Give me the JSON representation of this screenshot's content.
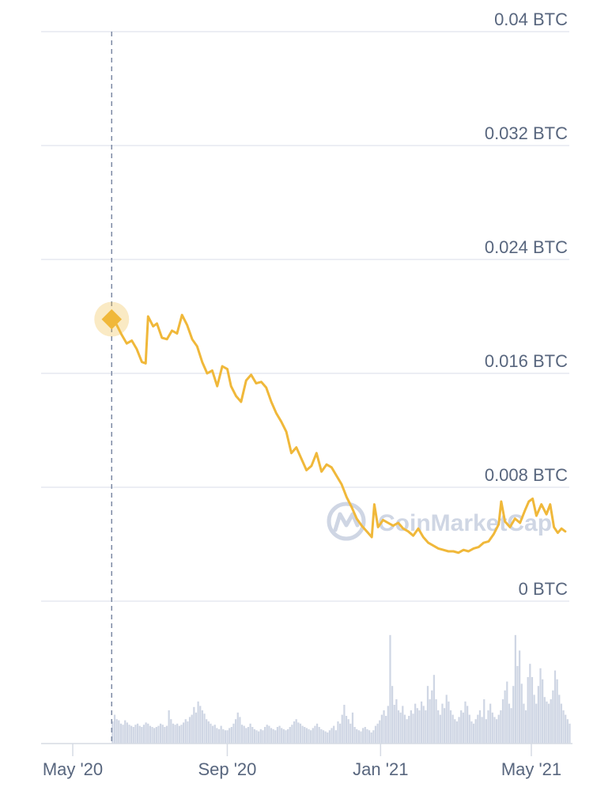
{
  "chart_data": {
    "type": "line",
    "watermark": "CoinMarketCap",
    "colors": {
      "line": "#f0b83a",
      "volume": "#cfd6e4",
      "grid": "#e6e9f0",
      "cursor": "#7d8aa5",
      "text": "#58667e"
    },
    "y_axis": {
      "unit": "BTC",
      "range": [
        0,
        0.04
      ],
      "ticks": [
        {
          "value": 0.04,
          "label": "0.04 BTC"
        },
        {
          "value": 0.032,
          "label": "0.032 BTC"
        },
        {
          "value": 0.024,
          "label": "0.024 BTC"
        },
        {
          "value": 0.016,
          "label": "0.016 BTC"
        },
        {
          "value": 0.008,
          "label": "0.008 BTC"
        },
        {
          "value": 0,
          "label": "0 BTC"
        }
      ]
    },
    "x_axis": {
      "range": [
        "2020-04-01",
        "2021-06-01"
      ],
      "ticks": [
        {
          "date": "2020-05-01",
          "label": "May '20"
        },
        {
          "date": "2020-09-01",
          "label": "Sep '20"
        },
        {
          "date": "2021-01-01",
          "label": "Jan '21"
        },
        {
          "date": "2021-05-01",
          "label": "May '21"
        }
      ]
    },
    "highlight": {
      "date": "2020-06-01",
      "value": 0.0198
    },
    "series": [
      {
        "type": "line",
        "points": [
          [
            "2020-06-01",
            0.0198
          ],
          [
            "2020-06-05",
            0.0194
          ],
          [
            "2020-06-09",
            0.0187
          ],
          [
            "2020-06-13",
            0.0181
          ],
          [
            "2020-06-17",
            0.0183
          ],
          [
            "2020-06-21",
            0.0177
          ],
          [
            "2020-06-25",
            0.0168
          ],
          [
            "2020-06-28",
            0.0167
          ],
          [
            "2020-06-30",
            0.02
          ],
          [
            "2020-07-04",
            0.0193
          ],
          [
            "2020-07-07",
            0.0195
          ],
          [
            "2020-07-11",
            0.0185
          ],
          [
            "2020-07-15",
            0.0184
          ],
          [
            "2020-07-19",
            0.019
          ],
          [
            "2020-07-23",
            0.0188
          ],
          [
            "2020-07-27",
            0.0201
          ],
          [
            "2020-07-31",
            0.0194
          ],
          [
            "2020-08-04",
            0.0184
          ],
          [
            "2020-08-08",
            0.0179
          ],
          [
            "2020-08-12",
            0.0168
          ],
          [
            "2020-08-16",
            0.016
          ],
          [
            "2020-08-20",
            0.0162
          ],
          [
            "2020-08-24",
            0.0151
          ],
          [
            "2020-08-28",
            0.0165
          ],
          [
            "2020-09-01",
            0.0163
          ],
          [
            "2020-09-04",
            0.0151
          ],
          [
            "2020-09-08",
            0.0144
          ],
          [
            "2020-09-12",
            0.014
          ],
          [
            "2020-09-16",
            0.0155
          ],
          [
            "2020-09-20",
            0.0159
          ],
          [
            "2020-09-24",
            0.0153
          ],
          [
            "2020-09-28",
            0.0154
          ],
          [
            "2020-10-02",
            0.015
          ],
          [
            "2020-10-06",
            0.014
          ],
          [
            "2020-10-10",
            0.0132
          ],
          [
            "2020-10-14",
            0.0126
          ],
          [
            "2020-10-18",
            0.0119
          ],
          [
            "2020-10-22",
            0.0104
          ],
          [
            "2020-10-26",
            0.0108
          ],
          [
            "2020-10-30",
            0.01
          ],
          [
            "2020-11-03",
            0.0092
          ],
          [
            "2020-11-07",
            0.0095
          ],
          [
            "2020-11-11",
            0.0104
          ],
          [
            "2020-11-15",
            0.0091
          ],
          [
            "2020-11-19",
            0.0096
          ],
          [
            "2020-11-23",
            0.0094
          ],
          [
            "2020-11-27",
            0.0088
          ],
          [
            "2020-12-01",
            0.0082
          ],
          [
            "2020-12-05",
            0.0073
          ],
          [
            "2020-12-09",
            0.0066
          ],
          [
            "2020-12-13",
            0.0058
          ],
          [
            "2020-12-17",
            0.0053
          ],
          [
            "2020-12-21",
            0.0049
          ],
          [
            "2020-12-25",
            0.0045
          ],
          [
            "2020-12-27",
            0.0068
          ],
          [
            "2020-12-30",
            0.0052
          ],
          [
            "2021-01-03",
            0.0057
          ],
          [
            "2021-01-07",
            0.0055
          ],
          [
            "2021-01-11",
            0.0053
          ],
          [
            "2021-01-15",
            0.0055
          ],
          [
            "2021-01-19",
            0.0051
          ],
          [
            "2021-01-23",
            0.0049
          ],
          [
            "2021-01-27",
            0.0046
          ],
          [
            "2021-01-31",
            0.0051
          ],
          [
            "2021-02-04",
            0.0045
          ],
          [
            "2021-02-08",
            0.0041
          ],
          [
            "2021-02-12",
            0.0039
          ],
          [
            "2021-02-16",
            0.0037
          ],
          [
            "2021-02-20",
            0.0036
          ],
          [
            "2021-02-24",
            0.0035
          ],
          [
            "2021-02-28",
            0.0035
          ],
          [
            "2021-03-04",
            0.0034
          ],
          [
            "2021-03-08",
            0.0036
          ],
          [
            "2021-03-12",
            0.0035
          ],
          [
            "2021-03-16",
            0.0037
          ],
          [
            "2021-03-20",
            0.0038
          ],
          [
            "2021-03-24",
            0.0041
          ],
          [
            "2021-03-28",
            0.0042
          ],
          [
            "2021-04-01",
            0.0047
          ],
          [
            "2021-04-05",
            0.0054
          ],
          [
            "2021-04-07",
            0.007
          ],
          [
            "2021-04-10",
            0.0056
          ],
          [
            "2021-04-14",
            0.0052
          ],
          [
            "2021-04-18",
            0.0058
          ],
          [
            "2021-04-22",
            0.0055
          ],
          [
            "2021-04-26",
            0.0064
          ],
          [
            "2021-04-29",
            0.007
          ],
          [
            "2021-05-02",
            0.0072
          ],
          [
            "2021-05-05",
            0.006
          ],
          [
            "2021-05-09",
            0.0068
          ],
          [
            "2021-05-13",
            0.0061
          ],
          [
            "2021-05-16",
            0.0068
          ],
          [
            "2021-05-19",
            0.0052
          ],
          [
            "2021-05-22",
            0.0048
          ],
          [
            "2021-05-25",
            0.0051
          ],
          [
            "2021-05-28",
            0.0049
          ]
        ]
      },
      {
        "type": "volume",
        "bars": [
          0.2,
          0.26,
          0.22,
          0.21,
          0.18,
          0.17,
          0.21,
          0.19,
          0.17,
          0.16,
          0.15,
          0.17,
          0.18,
          0.16,
          0.15,
          0.17,
          0.19,
          0.18,
          0.16,
          0.15,
          0.14,
          0.15,
          0.16,
          0.18,
          0.17,
          0.15,
          0.16,
          0.3,
          0.22,
          0.18,
          0.17,
          0.18,
          0.16,
          0.17,
          0.19,
          0.22,
          0.2,
          0.24,
          0.26,
          0.33,
          0.28,
          0.38,
          0.34,
          0.3,
          0.27,
          0.22,
          0.2,
          0.18,
          0.16,
          0.17,
          0.14,
          0.13,
          0.16,
          0.13,
          0.12,
          0.12,
          0.14,
          0.15,
          0.18,
          0.22,
          0.28,
          0.24,
          0.17,
          0.16,
          0.14,
          0.15,
          0.18,
          0.15,
          0.13,
          0.12,
          0.11,
          0.13,
          0.12,
          0.15,
          0.17,
          0.16,
          0.14,
          0.13,
          0.12,
          0.15,
          0.16,
          0.14,
          0.13,
          0.12,
          0.13,
          0.15,
          0.17,
          0.2,
          0.22,
          0.19,
          0.18,
          0.16,
          0.15,
          0.14,
          0.13,
          0.12,
          0.14,
          0.16,
          0.18,
          0.15,
          0.13,
          0.12,
          0.11,
          0.1,
          0.12,
          0.14,
          0.16,
          0.12,
          0.2,
          0.18,
          0.26,
          0.35,
          0.25,
          0.22,
          0.18,
          0.28,
          0.15,
          0.13,
          0.12,
          0.11,
          0.14,
          0.15,
          0.13,
          0.12,
          0.1,
          0.12,
          0.16,
          0.18,
          0.21,
          0.26,
          0.3,
          0.25,
          0.34,
          0.98,
          0.52,
          0.35,
          0.4,
          0.3,
          0.28,
          0.34,
          0.26,
          0.22,
          0.25,
          0.3,
          0.27,
          0.36,
          0.32,
          0.3,
          0.38,
          0.34,
          0.3,
          0.52,
          0.4,
          0.48,
          0.62,
          0.4,
          0.3,
          0.26,
          0.36,
          0.32,
          0.44,
          0.38,
          0.3,
          0.26,
          0.22,
          0.2,
          0.24,
          0.3,
          0.28,
          0.38,
          0.34,
          0.26,
          0.2,
          0.18,
          0.22,
          0.26,
          0.3,
          0.24,
          0.4,
          0.22,
          0.3,
          0.36,
          0.28,
          0.24,
          0.22,
          0.26,
          0.3,
          0.4,
          0.48,
          0.56,
          0.36,
          0.32,
          0.52,
          0.98,
          0.7,
          0.84,
          0.54,
          0.36,
          0.3,
          0.6,
          0.72,
          0.6,
          0.44,
          0.36,
          0.52,
          0.68,
          0.58,
          0.42,
          0.38,
          0.36,
          0.4,
          0.48,
          0.66,
          0.58,
          0.44,
          0.36,
          0.3,
          0.26,
          0.22,
          0.18
        ]
      }
    ]
  }
}
